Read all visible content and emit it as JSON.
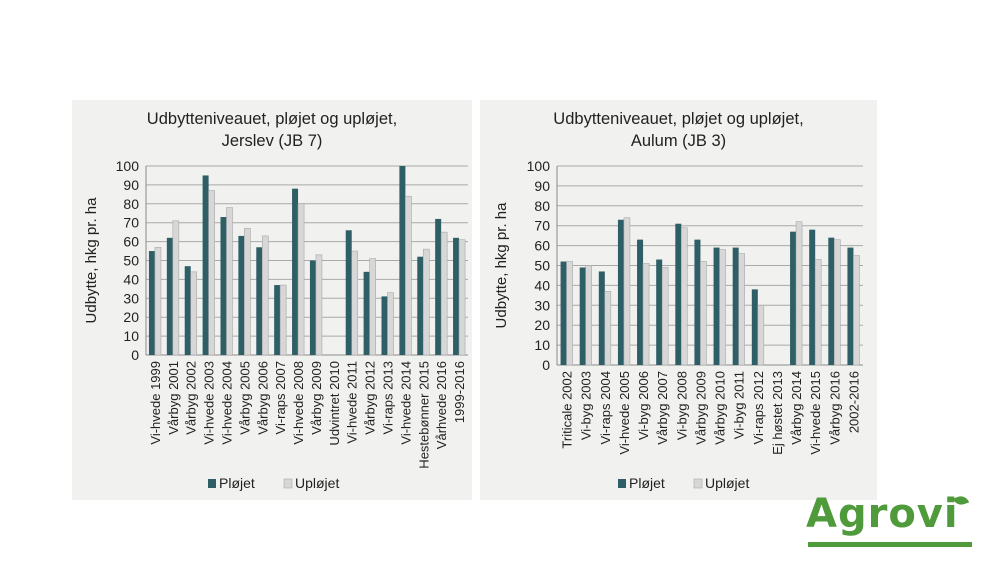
{
  "logo": {
    "text": "Agrovi",
    "color": "#4f9a3a"
  },
  "colors": {
    "ploejet": "#2e5e66",
    "uploejet": "#d7d7d7",
    "panel_bg": "#f1f1ef"
  },
  "chart_data": [
    {
      "type": "bar",
      "title_line1": "Udbytteniveauet, pløjet og upløjet,",
      "title_line2": "Jerslev (JB 7)",
      "ylabel": "Udbytte,  hkg pr. ha",
      "ylim": [
        0,
        100
      ],
      "yticks": [
        0,
        10,
        20,
        30,
        40,
        50,
        60,
        70,
        80,
        90,
        100
      ],
      "legend_position": "bottom",
      "categories": [
        "Vi-hvede 1999",
        "Vårbyg 2001",
        "Vårbyg 2002",
        "Vi-hvede 2003",
        "Vi-hvede 2004",
        "Vårbyg 2005",
        "Vårbyg 2006",
        "Vi-raps 2007",
        "Vi-hvede 2008",
        "Vårbyg 2009",
        "Udvintret 2010",
        "Vi-hvede 2011",
        "Vårbyg 2012",
        "Vi-raps 2013",
        "Vi-hvede 2014",
        "Hestebønner 2015",
        "Vårhvede 2016",
        "1999-2016"
      ],
      "series": [
        {
          "name": "Pløjet",
          "values": [
            55,
            62,
            47,
            95,
            73,
            63,
            57,
            37,
            88,
            50,
            null,
            66,
            44,
            31,
            100,
            52,
            72,
            62
          ]
        },
        {
          "name": "Upløjet",
          "values": [
            57,
            71,
            44,
            87,
            78,
            67,
            63,
            37,
            80,
            53,
            null,
            55,
            51,
            33,
            84,
            56,
            65,
            61
          ]
        }
      ]
    },
    {
      "type": "bar",
      "title_line1": "Udbytteniveauet, pløjet og upløjet,",
      "title_line2": "Aulum (JB 3)",
      "ylabel": "Udbytte,  hkg pr. ha",
      "ylim": [
        0,
        100
      ],
      "yticks": [
        0,
        10,
        20,
        30,
        40,
        50,
        60,
        70,
        80,
        90,
        100
      ],
      "legend_position": "bottom",
      "categories": [
        "Triticale 2002",
        "Vi-byg 2003",
        "Vi-raps 2004",
        "Vi-hvede 2005",
        "Vi-byg 2006",
        "Vårbyg 2007",
        "Vi-byg 2008",
        "Vårbyg 2009",
        "Vårbyg 2010",
        "Vi-byg 2011",
        "Vi-raps 2012",
        "Ej høstet 2013",
        "Vårbyg 2014",
        "Vi-hvede 2015",
        "Vårbyg 2016",
        "2002-2016"
      ],
      "series": [
        {
          "name": "Pløjet",
          "values": [
            52,
            49,
            47,
            73,
            63,
            53,
            71,
            63,
            59,
            59,
            38,
            null,
            67,
            68,
            64,
            59
          ]
        },
        {
          "name": "Upløjet",
          "values": [
            52,
            50,
            37,
            74,
            51,
            49,
            69,
            52,
            58,
            56,
            30,
            null,
            72,
            53,
            63,
            55
          ]
        }
      ]
    }
  ]
}
